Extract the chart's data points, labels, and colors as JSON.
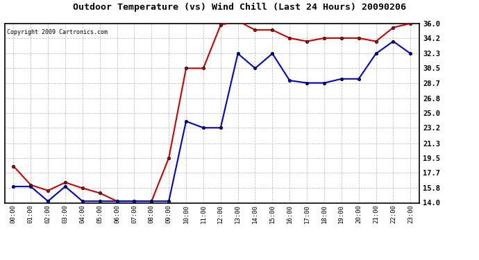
{
  "title": "Outdoor Temperature (vs) Wind Chill (Last 24 Hours) 20090206",
  "copyright": "Copyright 2009 Cartronics.com",
  "x_labels": [
    "00:00",
    "01:00",
    "02:00",
    "03:00",
    "04:00",
    "05:00",
    "06:00",
    "07:00",
    "08:00",
    "09:00",
    "10:00",
    "11:00",
    "12:00",
    "13:00",
    "14:00",
    "15:00",
    "16:00",
    "17:00",
    "18:00",
    "19:00",
    "20:00",
    "21:00",
    "22:00",
    "23:00"
  ],
  "temp_red": [
    18.5,
    16.2,
    15.5,
    16.5,
    15.8,
    15.2,
    14.2,
    14.2,
    14.2,
    19.5,
    30.5,
    30.5,
    35.8,
    36.3,
    35.2,
    35.2,
    34.2,
    33.8,
    34.2,
    34.2,
    34.2,
    33.8,
    35.5,
    36.0
  ],
  "wind_blue": [
    16.0,
    16.0,
    14.2,
    16.0,
    14.2,
    14.2,
    14.2,
    14.2,
    14.2,
    14.2,
    24.0,
    23.2,
    23.2,
    32.3,
    30.5,
    32.3,
    29.0,
    28.7,
    28.7,
    29.2,
    29.2,
    32.3,
    33.8,
    32.3
  ],
  "y_ticks": [
    14.0,
    15.8,
    17.7,
    19.5,
    21.3,
    23.2,
    25.0,
    26.8,
    28.7,
    30.5,
    32.3,
    34.2,
    36.0
  ],
  "y_min": 14.0,
  "y_max": 36.0,
  "red_color": "#cc0000",
  "blue_color": "#0000cc",
  "bg_color": "#ffffff",
  "grid_color": "#bbbbbb"
}
